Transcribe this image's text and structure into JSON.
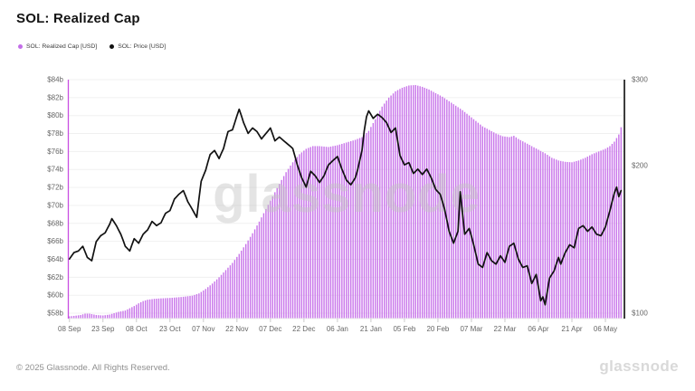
{
  "header": {
    "title": "SOL: Realized Cap"
  },
  "legend": [
    {
      "label": "SOL: Realized Cap [USD]",
      "color": "#c36ee8"
    },
    {
      "label": "SOL: Price [USD]",
      "color": "#111111"
    }
  ],
  "watermark": "glassnode",
  "footer": {
    "copyright": "© 2025 Glassnode. All Rights Reserved.",
    "brand": "glassnode"
  },
  "chart_data": {
    "type": "mixed",
    "title": "SOL: Realized Cap",
    "grid": "horizontal-only",
    "legend_position": "top-left",
    "x_axis": {
      "domain_days": [
        0,
        249
      ],
      "last_day": 247,
      "ticks": [
        {
          "day": 0,
          "label": "08 Sep"
        },
        {
          "day": 15,
          "label": "23 Sep"
        },
        {
          "day": 30,
          "label": "08 Oct"
        },
        {
          "day": 45,
          "label": "23 Oct"
        },
        {
          "day": 60,
          "label": "07 Nov"
        },
        {
          "day": 75,
          "label": "22 Nov"
        },
        {
          "day": 90,
          "label": "07 Dec"
        },
        {
          "day": 105,
          "label": "22 Dec"
        },
        {
          "day": 120,
          "label": "06 Jan"
        },
        {
          "day": 135,
          "label": "21 Jan"
        },
        {
          "day": 150,
          "label": "05 Feb"
        },
        {
          "day": 165,
          "label": "20 Feb"
        },
        {
          "day": 180,
          "label": "07 Mar"
        },
        {
          "day": 195,
          "label": "22 Mar"
        },
        {
          "day": 210,
          "label": "06 Apr"
        },
        {
          "day": 225,
          "label": "21 Apr"
        },
        {
          "day": 240,
          "label": "06 May"
        }
      ]
    },
    "y_axis_left": {
      "unit": "billion USD",
      "scale": "linear",
      "range": [
        57.4,
        84
      ],
      "ticks": [
        {
          "value": 58,
          "label": "$58b"
        },
        {
          "value": 60,
          "label": "$60b"
        },
        {
          "value": 62,
          "label": "$62b"
        },
        {
          "value": 64,
          "label": "$64b"
        },
        {
          "value": 66,
          "label": "$66b"
        },
        {
          "value": 68,
          "label": "$68b"
        },
        {
          "value": 70,
          "label": "$70b"
        },
        {
          "value": 72,
          "label": "$72b"
        },
        {
          "value": 74,
          "label": "$74b"
        },
        {
          "value": 76,
          "label": "$76b"
        },
        {
          "value": 78,
          "label": "$78b"
        },
        {
          "value": 80,
          "label": "$80b"
        },
        {
          "value": 82,
          "label": "$82b"
        },
        {
          "value": 84,
          "label": "$84b"
        }
      ],
      "axis_line_color": "#c94fe2"
    },
    "y_axis_right": {
      "unit": "USD",
      "scale": "log",
      "range": [
        97.5,
        300
      ],
      "ticks": [
        {
          "value": 100,
          "label": "$100"
        },
        {
          "value": 200,
          "label": "$200"
        },
        {
          "value": 300,
          "label": "$300"
        }
      ],
      "axis_line_color": "#3d3d3d"
    },
    "series": [
      {
        "name": "SOL: Realized Cap [USD]",
        "type": "bar",
        "axis": "left",
        "color": "#c874ea",
        "unit": "$ billions",
        "keypoints": [
          [
            0,
            57.65
          ],
          [
            2,
            57.7
          ],
          [
            5,
            57.8
          ],
          [
            7,
            57.95
          ],
          [
            9,
            57.95
          ],
          [
            12,
            57.8
          ],
          [
            15,
            57.75
          ],
          [
            18,
            57.85
          ],
          [
            20,
            58.0
          ],
          [
            22,
            58.15
          ],
          [
            25,
            58.3
          ],
          [
            27,
            58.55
          ],
          [
            29,
            58.8
          ],
          [
            31,
            59.1
          ],
          [
            33,
            59.35
          ],
          [
            35,
            59.5
          ],
          [
            38,
            59.6
          ],
          [
            41,
            59.65
          ],
          [
            45,
            59.7
          ],
          [
            50,
            59.8
          ],
          [
            55,
            59.95
          ],
          [
            58,
            60.2
          ],
          [
            61,
            60.7
          ],
          [
            64,
            61.3
          ],
          [
            67,
            62.0
          ],
          [
            70,
            62.8
          ],
          [
            73,
            63.6
          ],
          [
            76,
            64.6
          ],
          [
            79,
            65.7
          ],
          [
            82,
            66.9
          ],
          [
            85,
            68.2
          ],
          [
            88,
            69.6
          ],
          [
            91,
            71.0
          ],
          [
            94,
            72.4
          ],
          [
            97,
            73.7
          ],
          [
            100,
            74.8
          ],
          [
            103,
            75.7
          ],
          [
            106,
            76.3
          ],
          [
            109,
            76.6
          ],
          [
            112,
            76.6
          ],
          [
            116,
            76.5
          ],
          [
            120,
            76.7
          ],
          [
            124,
            77.0
          ],
          [
            128,
            77.3
          ],
          [
            131,
            77.6
          ],
          [
            134,
            78.3
          ],
          [
            137,
            79.6
          ],
          [
            140,
            81.0
          ],
          [
            143,
            82.0
          ],
          [
            146,
            82.7
          ],
          [
            149,
            83.1
          ],
          [
            152,
            83.35
          ],
          [
            155,
            83.4
          ],
          [
            158,
            83.2
          ],
          [
            161,
            82.9
          ],
          [
            164,
            82.5
          ],
          [
            167,
            82.1
          ],
          [
            170,
            81.6
          ],
          [
            173,
            81.1
          ],
          [
            176,
            80.6
          ],
          [
            179,
            80.0
          ],
          [
            182,
            79.4
          ],
          [
            185,
            78.8
          ],
          [
            188,
            78.4
          ],
          [
            191,
            78.0
          ],
          [
            194,
            77.7
          ],
          [
            197,
            77.6
          ],
          [
            199,
            77.75
          ],
          [
            201,
            77.4
          ],
          [
            204,
            77.0
          ],
          [
            207,
            76.6
          ],
          [
            210,
            76.2
          ],
          [
            213,
            75.8
          ],
          [
            216,
            75.3
          ],
          [
            219,
            75.0
          ],
          [
            222,
            74.85
          ],
          [
            225,
            74.8
          ],
          [
            228,
            75.0
          ],
          [
            231,
            75.3
          ],
          [
            234,
            75.7
          ],
          [
            237,
            76.0
          ],
          [
            240,
            76.3
          ],
          [
            242,
            76.6
          ],
          [
            244,
            77.1
          ],
          [
            246,
            77.9
          ],
          [
            247,
            78.7
          ]
        ]
      },
      {
        "name": "SOL: Price [USD]",
        "type": "line",
        "axis": "right",
        "color": "#111111",
        "unit": "$",
        "keypoints": [
          [
            0,
            129
          ],
          [
            2,
            133
          ],
          [
            4,
            134
          ],
          [
            6,
            137
          ],
          [
            8,
            130
          ],
          [
            10,
            128
          ],
          [
            12,
            140
          ],
          [
            14,
            144
          ],
          [
            16,
            146
          ],
          [
            18,
            152
          ],
          [
            19,
            156
          ],
          [
            21,
            151
          ],
          [
            23,
            145
          ],
          [
            25,
            137
          ],
          [
            27,
            134
          ],
          [
            29,
            142
          ],
          [
            31,
            139
          ],
          [
            33,
            145
          ],
          [
            35,
            148
          ],
          [
            37,
            154
          ],
          [
            39,
            151
          ],
          [
            41,
            153
          ],
          [
            43,
            160
          ],
          [
            45,
            162
          ],
          [
            47,
            171
          ],
          [
            49,
            175
          ],
          [
            51,
            178
          ],
          [
            53,
            169
          ],
          [
            55,
            163
          ],
          [
            57,
            157
          ],
          [
            59,
            186
          ],
          [
            61,
            196
          ],
          [
            63,
            211
          ],
          [
            65,
            215
          ],
          [
            67,
            207
          ],
          [
            69,
            217
          ],
          [
            71,
            235
          ],
          [
            73,
            237
          ],
          [
            75,
            253
          ],
          [
            76,
            261
          ],
          [
            78,
            245
          ],
          [
            80,
            233
          ],
          [
            82,
            239
          ],
          [
            84,
            235
          ],
          [
            86,
            227
          ],
          [
            88,
            233
          ],
          [
            90,
            239
          ],
          [
            92,
            225
          ],
          [
            94,
            229
          ],
          [
            96,
            225
          ],
          [
            98,
            221
          ],
          [
            100,
            217
          ],
          [
            102,
            201
          ],
          [
            104,
            189
          ],
          [
            106,
            181
          ],
          [
            108,
            195
          ],
          [
            110,
            191
          ],
          [
            112,
            185
          ],
          [
            114,
            191
          ],
          [
            116,
            201
          ],
          [
            118,
            205
          ],
          [
            120,
            209
          ],
          [
            122,
            197
          ],
          [
            124,
            187
          ],
          [
            126,
            183
          ],
          [
            128,
            189
          ],
          [
            129,
            196
          ],
          [
            131,
            215
          ],
          [
            132,
            236
          ],
          [
            133,
            252
          ],
          [
            134,
            259
          ],
          [
            136,
            250
          ],
          [
            138,
            255
          ],
          [
            140,
            251
          ],
          [
            142,
            245
          ],
          [
            144,
            234
          ],
          [
            146,
            239
          ],
          [
            148,
            210
          ],
          [
            150,
            201
          ],
          [
            152,
            203
          ],
          [
            154,
            193
          ],
          [
            156,
            197
          ],
          [
            158,
            192
          ],
          [
            160,
            197
          ],
          [
            162,
            189
          ],
          [
            164,
            179
          ],
          [
            166,
            175
          ],
          [
            168,
            163
          ],
          [
            170,
            147
          ],
          [
            172,
            139
          ],
          [
            174,
            147
          ],
          [
            175,
            177
          ],
          [
            176,
            160
          ],
          [
            177,
            145
          ],
          [
            179,
            149
          ],
          [
            181,
            138
          ],
          [
            183,
            126
          ],
          [
            185,
            124
          ],
          [
            187,
            133
          ],
          [
            189,
            128
          ],
          [
            191,
            126
          ],
          [
            193,
            131
          ],
          [
            195,
            127
          ],
          [
            197,
            137
          ],
          [
            199,
            139
          ],
          [
            201,
            129
          ],
          [
            203,
            124
          ],
          [
            205,
            125
          ],
          [
            207,
            115
          ],
          [
            209,
            120
          ],
          [
            211,
            106
          ],
          [
            212,
            108
          ],
          [
            213,
            104
          ],
          [
            215,
            118
          ],
          [
            217,
            122
          ],
          [
            219,
            130
          ],
          [
            220,
            126
          ],
          [
            222,
            133
          ],
          [
            224,
            138
          ],
          [
            226,
            136
          ],
          [
            228,
            149
          ],
          [
            230,
            151
          ],
          [
            232,
            147
          ],
          [
            234,
            150
          ],
          [
            236,
            145
          ],
          [
            238,
            144
          ],
          [
            240,
            150
          ],
          [
            242,
            162
          ],
          [
            244,
            176
          ],
          [
            245,
            181
          ],
          [
            246,
            173
          ],
          [
            247,
            178
          ]
        ]
      }
    ]
  }
}
